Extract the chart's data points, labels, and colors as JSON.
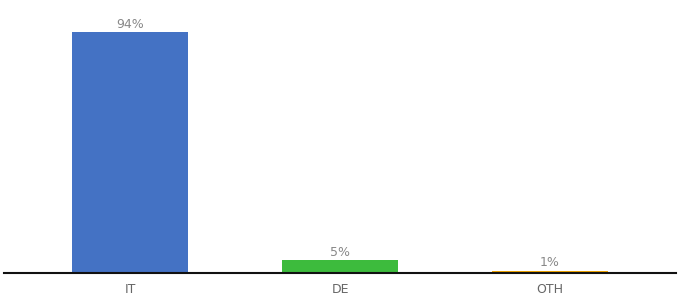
{
  "categories": [
    "IT",
    "DE",
    "OTH"
  ],
  "values": [
    94,
    5,
    1
  ],
  "bar_colors": [
    "#4472c4",
    "#3dbb3d",
    "#f0a500"
  ],
  "value_labels": [
    "94%",
    "5%",
    "1%"
  ],
  "label_fontsize": 9,
  "tick_fontsize": 9,
  "ylim": [
    0,
    105
  ],
  "background_color": "#ffffff",
  "bar_width": 0.55,
  "x_positions": [
    0,
    1,
    2
  ]
}
